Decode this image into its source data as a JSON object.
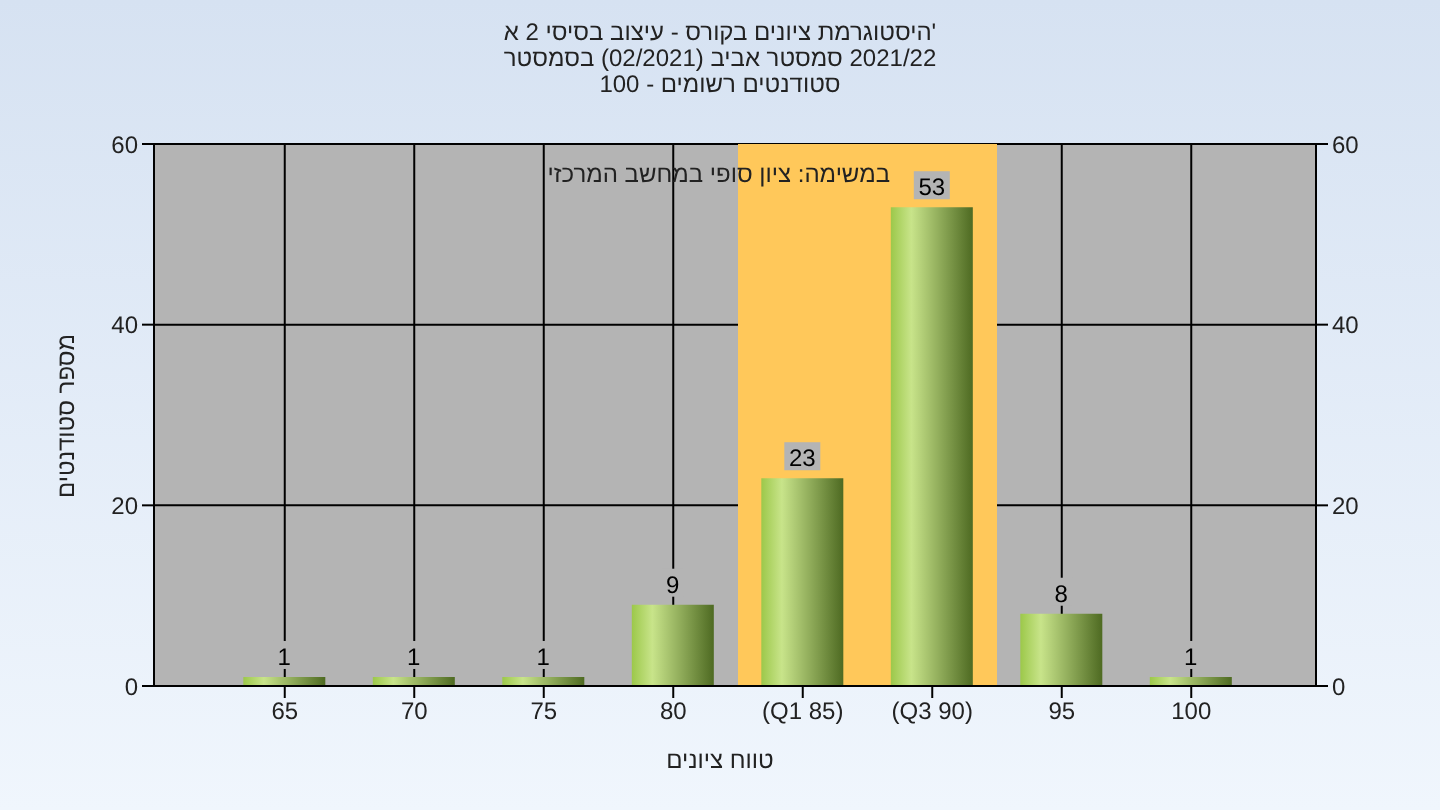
{
  "chart_data": {
    "type": "bar",
    "title": "'היסטוגרמת ציונים בקורס - עיצוב בסיסי 2 א",
    "subtitle": "2021/22 סמסטר אביב (02/2021) בסמסטר\nסטודנטים רשומים - 100",
    "xlabel": "טווח ציונים",
    "ylabel": "מספר סטודנטים",
    "annotations": [
      "במשימה: ציון סופי במחשב המרכזי"
    ],
    "categories": [
      "65",
      "70",
      "75",
      "80",
      "(Q1 85)",
      "(Q3 90)",
      "95",
      "100"
    ],
    "values": [
      1,
      1,
      1,
      9,
      23,
      53,
      8,
      1
    ],
    "color": "#9cc84a",
    "ylim": [
      0,
      60
    ],
    "yticks": [
      0,
      20,
      40,
      60
    ],
    "y2lim": [
      0,
      60
    ],
    "y2ticks": [
      0,
      20,
      40,
      60
    ],
    "bands": [
      {
        "axis": "x",
        "from": "(Q1 85)",
        "to": "(Q3 90)",
        "color": "#ffc85a"
      }
    ],
    "grid": true,
    "data_labels": true
  }
}
